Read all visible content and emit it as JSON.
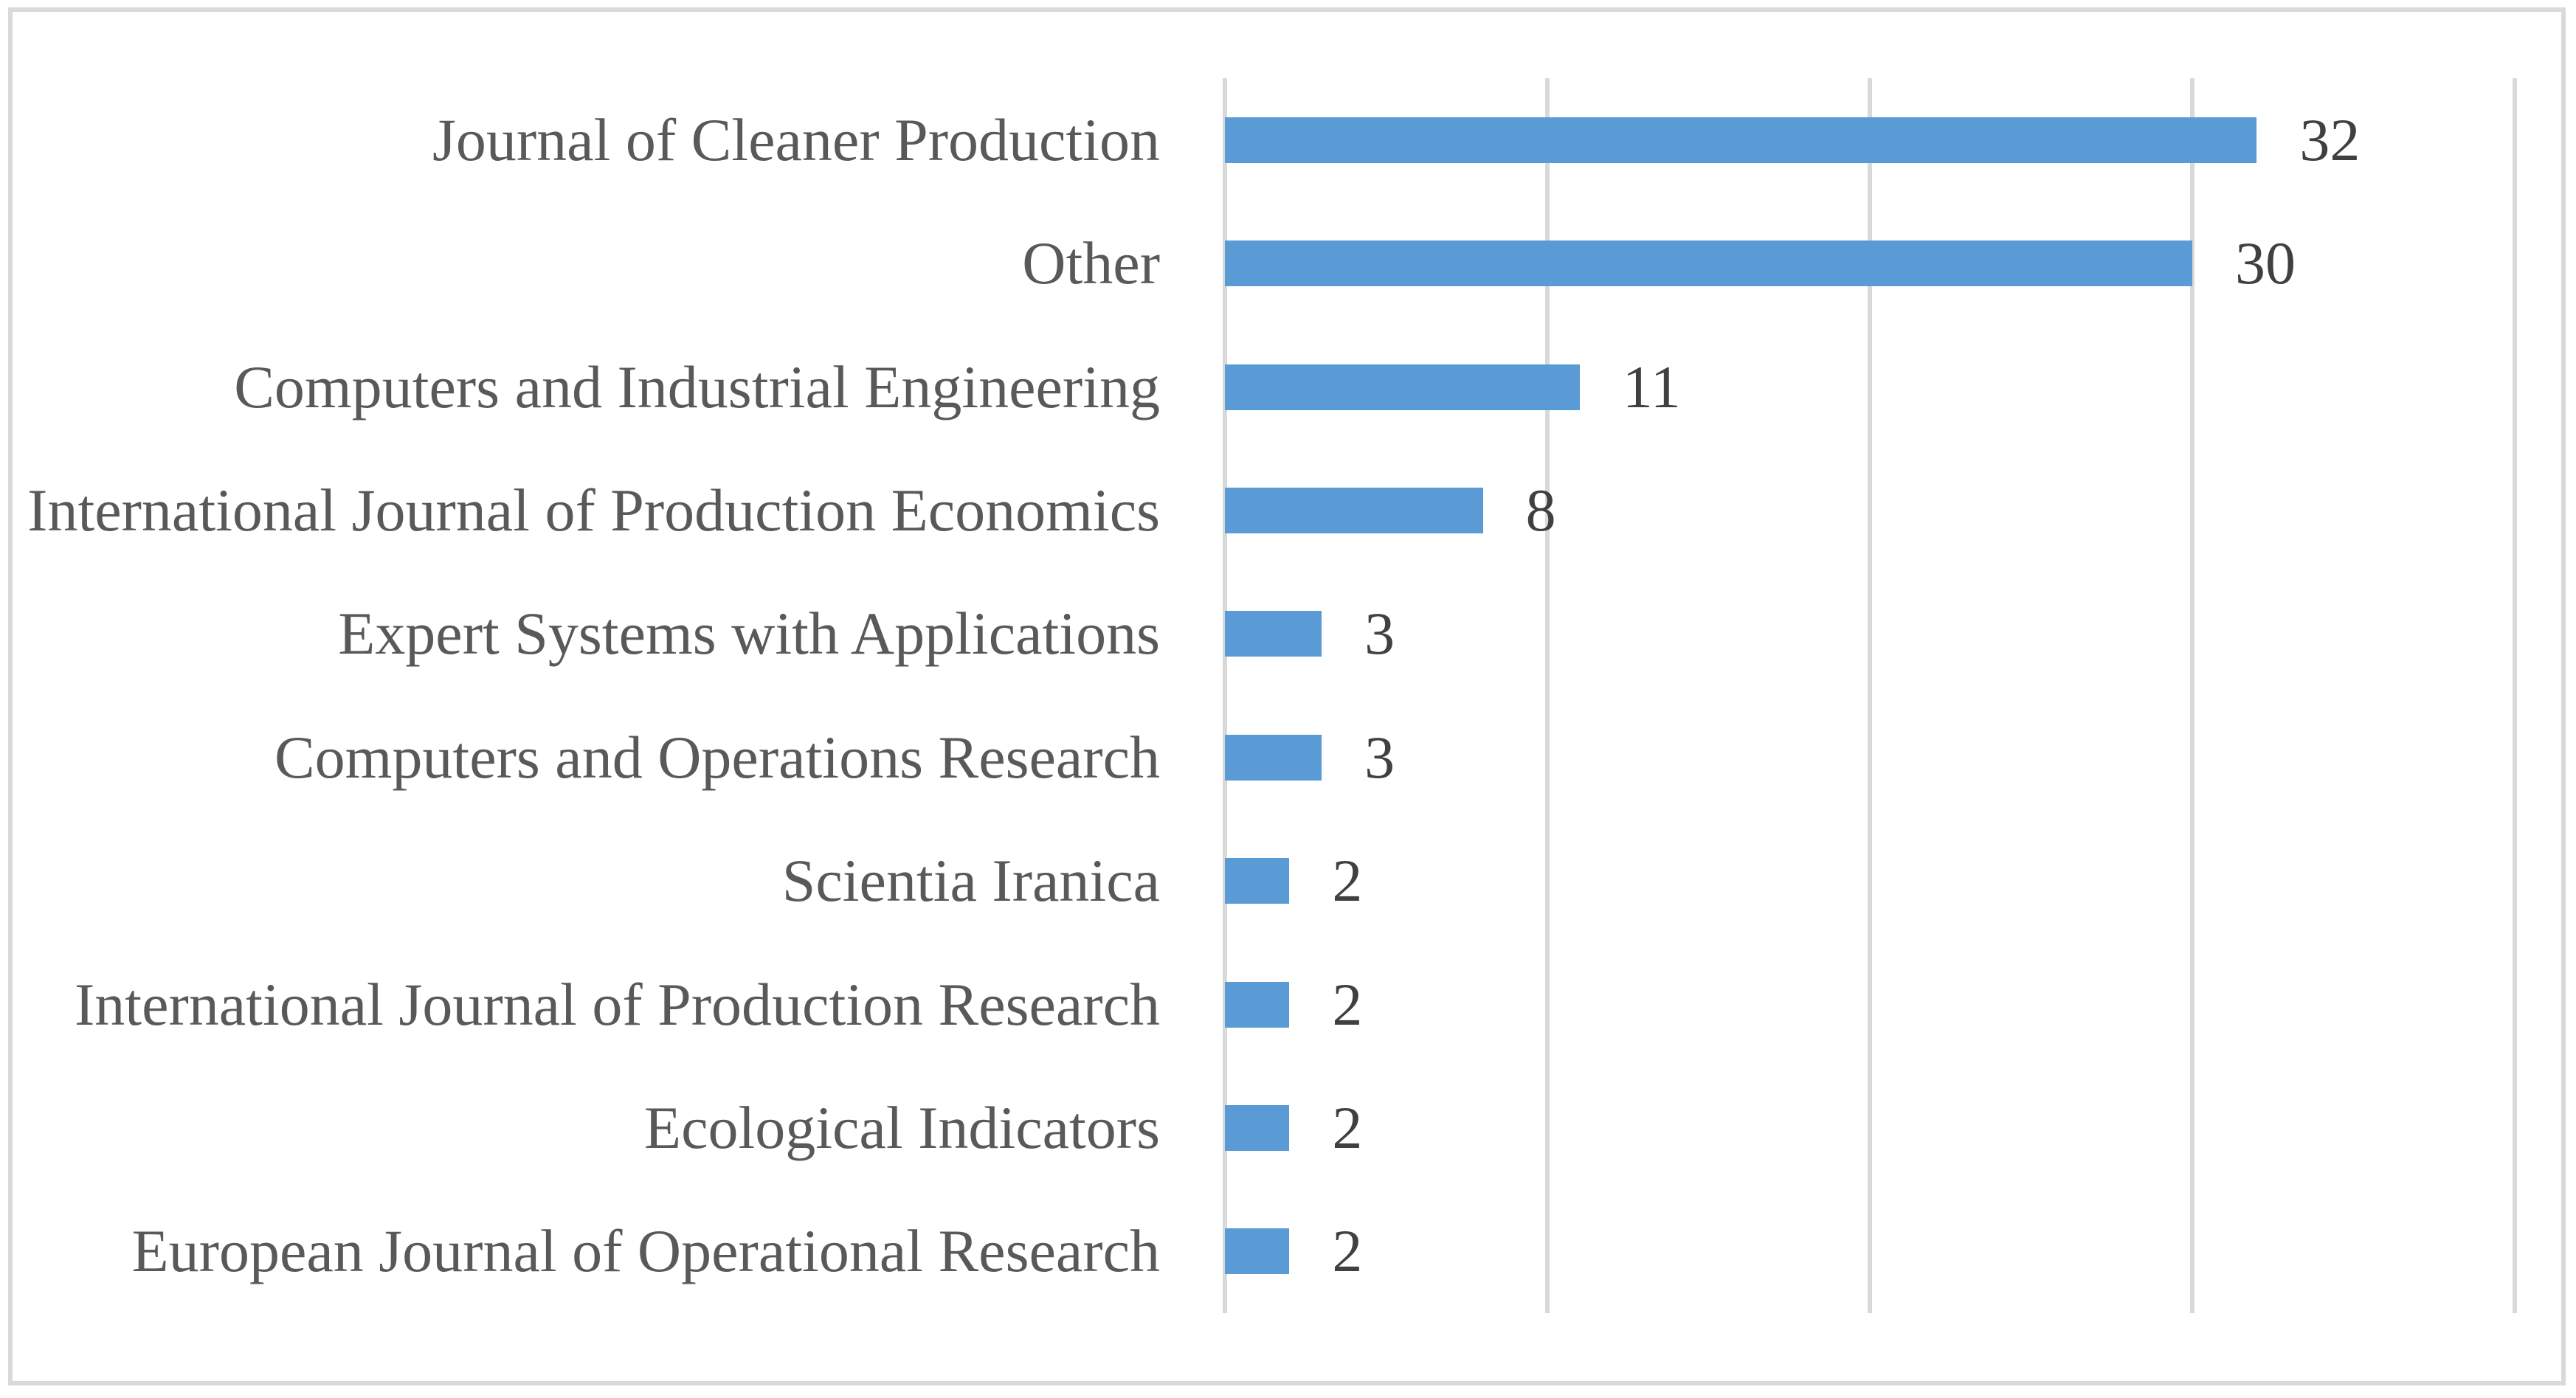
{
  "figure": {
    "background_color": "#ffffff",
    "border_color": "#d9d9d9"
  },
  "chart_data": {
    "type": "bar",
    "orientation": "horizontal",
    "title": "",
    "xlabel": "",
    "ylabel": "",
    "xlim": [
      0,
      40
    ],
    "gridline_interval": 10,
    "gridline_color": "#d9d9d9",
    "bar_color": "#5b9bd5",
    "category_label_color": "#595959",
    "value_label_color": "#404040",
    "legend": "none",
    "axis_tick_labels": "none",
    "categories": [
      "Journal of Cleaner Production",
      "Other",
      "Computers and Industrial Engineering",
      "International Journal of Production Economics",
      "Expert Systems with Applications",
      "Computers and Operations Research",
      "Scientia Iranica",
      "International Journal of Production Research",
      "Ecological Indicators",
      "European Journal of Operational Research"
    ],
    "values": [
      32,
      30,
      11,
      8,
      3,
      3,
      2,
      2,
      2,
      2
    ]
  }
}
